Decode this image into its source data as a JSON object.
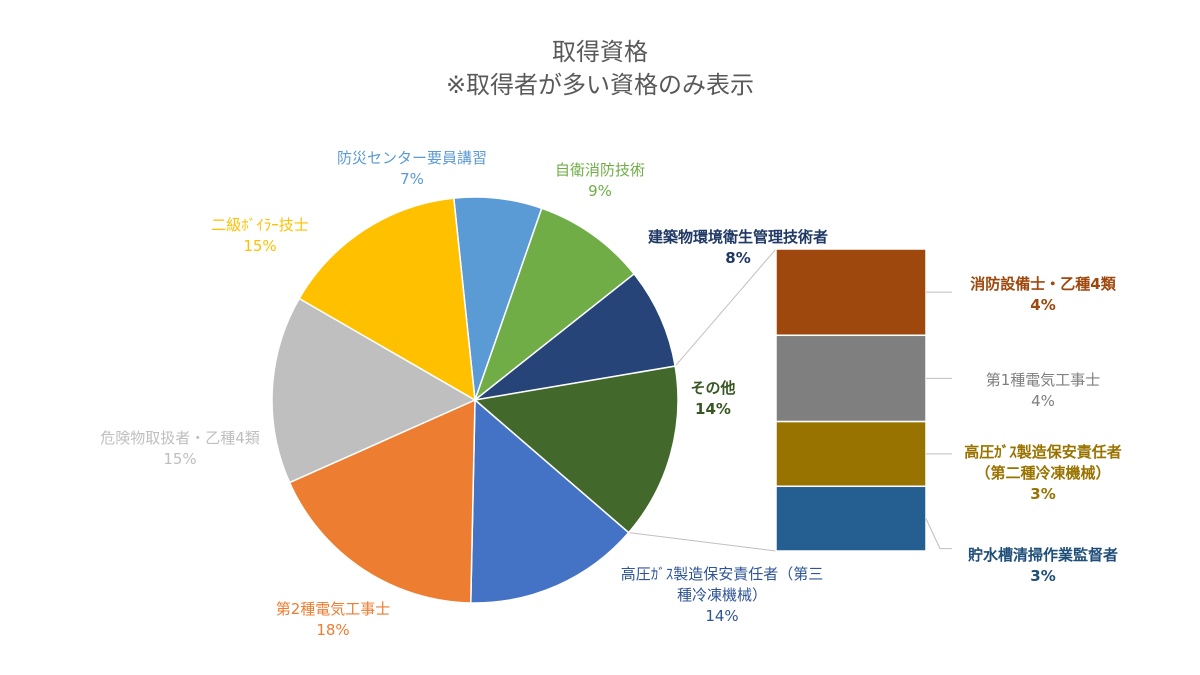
{
  "chart_data": {
    "type": "bar-of-pie",
    "title": "取得資格",
    "subtitle": "※取得者が多い資格のみ表示",
    "pie": [
      {
        "name": "防災センター要員講習",
        "label": "7%",
        "value": 7,
        "color": "#5B9BD5",
        "label_color": "#5B9BD5"
      },
      {
        "name": "自衛消防技術",
        "label": "9%",
        "value": 9,
        "color": "#70AD47",
        "label_color": "#70AD47"
      },
      {
        "name": "建築物環境衛生管理技術者",
        "label": "8%",
        "value": 8,
        "color": "#264478",
        "label_color": "#1F3864"
      },
      {
        "name": "その他",
        "label": "14%",
        "value": 14,
        "color": "#43682B",
        "label_color": "#385723"
      },
      {
        "name": "高圧ｶﾞｽ製造保安責任者（第三種冷凍機械）",
        "name_lines": [
          "高圧ｶﾞｽ製造保安責任者（第三",
          "種冷凍機械）"
        ],
        "label": "14%",
        "value": 14,
        "color": "#4472C4",
        "label_color": "#2F5597"
      },
      {
        "name": "第2種電気工事士",
        "label": "18%",
        "value": 18,
        "color": "#ED7D31",
        "label_color": "#ED7D31"
      },
      {
        "name": "危険物取扱者・乙種4類",
        "label": "15%",
        "value": 15,
        "color": "#BFBFBF",
        "label_color": "#BFBFBF"
      },
      {
        "name": "二級ﾎﾞｲﾗｰ技士",
        "label": "15%",
        "value": 15,
        "color": "#FFC000",
        "label_color": "#FFC000"
      }
    ],
    "other_breakdown": [
      {
        "name": "消防設備士・乙種4類",
        "label": "4%",
        "value": 4,
        "color": "#9E480E",
        "label_color": "#9E480E"
      },
      {
        "name": "第1種電気工事士",
        "label": "4%",
        "value": 4,
        "color": "#7F7F7F",
        "label_color": "#7F7F7F"
      },
      {
        "name": "高圧ｶﾞｽ製造保安責任者（第二種冷凍機械）",
        "name_lines": [
          "高圧ｶﾞｽ製造保安責任者",
          "（第二種冷凍機械）"
        ],
        "label": "3%",
        "value": 3,
        "color": "#997300",
        "label_color": "#997300"
      },
      {
        "name": "貯水槽清掃作業監督者",
        "label": "3%",
        "value": 3,
        "color": "#255E91",
        "label_color": "#1F4E79"
      }
    ],
    "legend": "none"
  }
}
